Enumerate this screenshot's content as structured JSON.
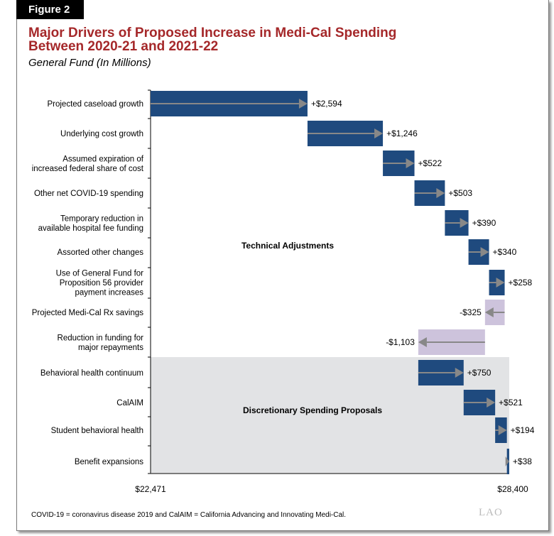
{
  "figure_label": "Figure 2",
  "note": "COVID-19 = coronavirus disease 2019 and CalAIM = California Advancing and Innovating Medi-Cal.",
  "logo": "LAO",
  "chart_data": {
    "type": "waterfall",
    "title": "Major Drivers of Proposed Increase in Medi-Cal Spending\nBetween 2020-21 and 2021-22",
    "title_lines": [
      "Major Drivers of Proposed Increase in Medi-Cal Spending",
      "Between 2020-21 and 2021-22"
    ],
    "subtitle": "General Fund (In Millions)",
    "start_value": 22471,
    "end_value": 28400,
    "start_label": "$22,471",
    "end_label": "$28,400",
    "colors": {
      "increase": "#1f4a7e",
      "decrease": "#cdc3dc",
      "arrow": "#888888",
      "group_band": "#e2e3e5",
      "title": "#a5282a"
    },
    "groups": [
      {
        "name": "Technical Adjustments",
        "first": 0,
        "last": 8
      },
      {
        "name": "Discretionary Spending Proposals",
        "first": 9,
        "last": 12,
        "shaded": true
      }
    ],
    "items": [
      {
        "label": [
          "Projected caseload growth"
        ],
        "value": 2594,
        "value_label": "+$2,594"
      },
      {
        "label": [
          "Underlying cost growth"
        ],
        "value": 1246,
        "value_label": "+$1,246"
      },
      {
        "label": [
          "Assumed expiration of",
          "increased federal share of cost"
        ],
        "value": 522,
        "value_label": "+$522"
      },
      {
        "label": [
          "Other net COVID-19 spending"
        ],
        "value": 503,
        "value_label": "+$503"
      },
      {
        "label": [
          "Temporary reduction in",
          "available hospital fee funding"
        ],
        "value": 390,
        "value_label": "+$390"
      },
      {
        "label": [
          "Assorted other changes"
        ],
        "value": 340,
        "value_label": "+$340"
      },
      {
        "label": [
          "Use of General Fund for",
          "Proposition 56 provider",
          "payment increases"
        ],
        "value": 258,
        "value_label": "+$258"
      },
      {
        "label": [
          "Projected Medi-Cal Rx savings"
        ],
        "value": -325,
        "value_label": "-$325"
      },
      {
        "label": [
          "Reduction in funding for",
          "major repayments"
        ],
        "value": -1103,
        "value_label": "-$1,103"
      },
      {
        "label": [
          "Behavioral health continuum"
        ],
        "value": 750,
        "value_label": "+$750"
      },
      {
        "label": [
          "CalAIM"
        ],
        "value": 521,
        "value_label": "+$521"
      },
      {
        "label": [
          "Student behavioral health"
        ],
        "value": 194,
        "value_label": "+$194"
      },
      {
        "label": [
          "Benefit expansions"
        ],
        "value": 38,
        "value_label": "+$38"
      }
    ]
  }
}
